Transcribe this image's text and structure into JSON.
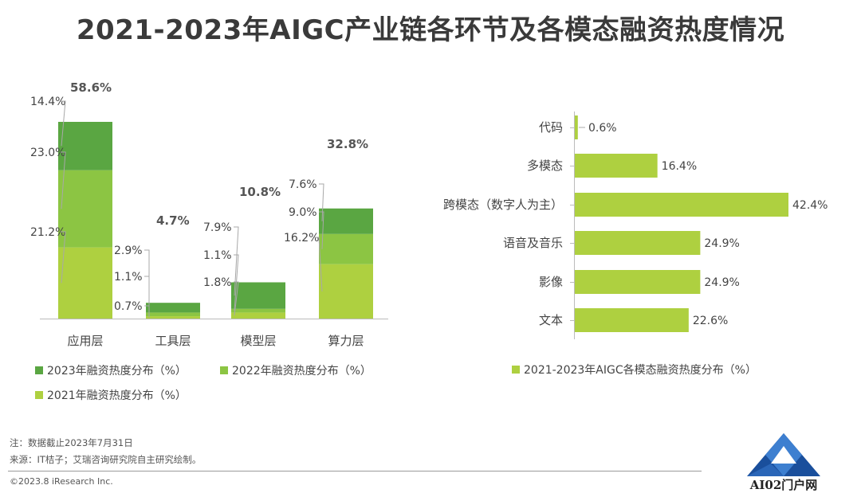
{
  "title": "2021-2023年AIGC产业链各环节及各模态融资热度情况",
  "colors": {
    "y2023": "#5aa642",
    "y2022": "#8cc543",
    "y2021": "#aed040",
    "modal": "#aed040"
  },
  "chart_data": [
    {
      "type": "bar",
      "stacked": true,
      "categories": [
        "应用层",
        "工具层",
        "模型层",
        "算力层"
      ],
      "totals": [
        "58.6%",
        "4.7%",
        "10.8%",
        "32.8%"
      ],
      "series": [
        {
          "name": "2021年融资热度分布（%）",
          "values": [
            21.2,
            0.7,
            1.8,
            16.2
          ],
          "labels": [
            "21.2%",
            "0.7%",
            "1.8%",
            "16.2%"
          ]
        },
        {
          "name": "2022年融资热度分布（%）",
          "values": [
            23.0,
            1.1,
            1.1,
            9.0
          ],
          "labels": [
            "23.0%",
            "1.1%",
            "1.1%",
            "9.0%"
          ]
        },
        {
          "name": "2023年融资热度分布（%）",
          "values": [
            14.4,
            2.9,
            7.9,
            7.6
          ],
          "labels": [
            "14.4%",
            "2.9%",
            "7.9%",
            "7.6%"
          ]
        }
      ],
      "legend": [
        "2023年融资热度分布（%）",
        "2022年融资热度分布（%）",
        "2021年融资热度分布（%）"
      ]
    },
    {
      "type": "bar",
      "orientation": "horizontal",
      "categories": [
        "代码",
        "多模态",
        "跨模态（数字人为主）",
        "语音及音乐",
        "影像",
        "文本"
      ],
      "values": [
        0.6,
        16.4,
        42.4,
        24.9,
        24.9,
        22.6
      ],
      "value_labels": [
        "0.6%",
        "16.4%",
        "42.4%",
        "24.9%",
        "24.9%",
        "22.6%"
      ],
      "legend": [
        "2021-2023年AIGC各模态融资热度分布（%）"
      ]
    }
  ],
  "notes": {
    "note": "注：数据截止2023年7月31日",
    "source": "来源：IT桔子；艾瑞咨询研究院自主研究绘制。",
    "copyright": "©2023.8 iResearch Inc."
  },
  "watermark": {
    "text": "AI02门户网"
  }
}
